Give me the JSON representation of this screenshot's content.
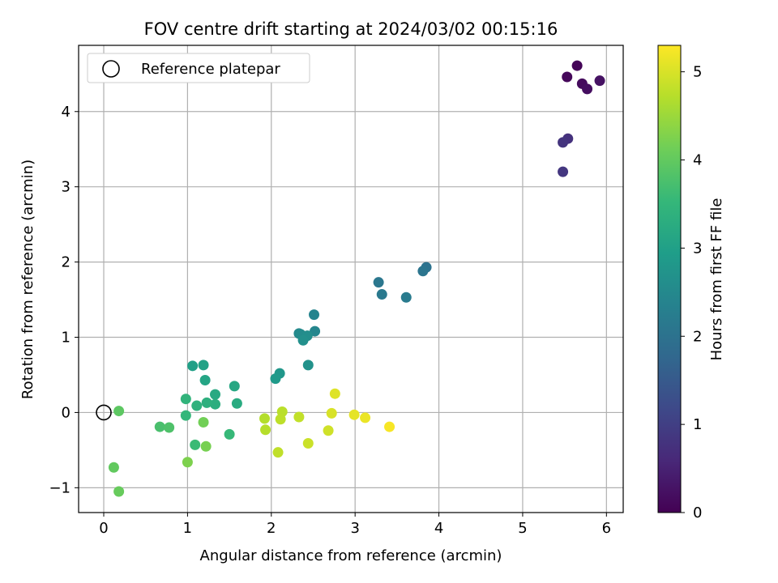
{
  "chart_data": {
    "type": "scatter",
    "title": "FOV centre drift starting at 2024/03/02 00:15:16",
    "xlabel": "Angular distance from reference (arcmin)",
    "ylabel": "Rotation from reference (arcmin)",
    "xlim": [
      -0.3,
      6.2
    ],
    "ylim": [
      -1.33,
      4.88
    ],
    "xticks": [
      0,
      1,
      2,
      3,
      4,
      5,
      6
    ],
    "yticks": [
      -1,
      0,
      1,
      2,
      3,
      4
    ],
    "grid": true,
    "legend": {
      "placement": "upper-left",
      "entries": [
        "Reference platepar"
      ]
    },
    "reference_point": {
      "x": 0,
      "y": 0
    },
    "colorbar": {
      "label": "Hours from first FF file",
      "range": [
        0,
        5.3
      ],
      "ticks": [
        0,
        1,
        2,
        3,
        4,
        5
      ],
      "colormap": "viridis"
    },
    "colormap_stops": [
      "#440154",
      "#482878",
      "#3e4989",
      "#31688e",
      "#26828e",
      "#1f9e89",
      "#35b779",
      "#6ece58",
      "#b5de2b",
      "#fde725"
    ],
    "points": [
      {
        "x": 5.65,
        "y": 4.61,
        "t": 0.05
      },
      {
        "x": 5.53,
        "y": 4.46,
        "t": 0.1
      },
      {
        "x": 5.71,
        "y": 4.37,
        "t": 0.15
      },
      {
        "x": 5.77,
        "y": 4.3,
        "t": 0.2
      },
      {
        "x": 5.92,
        "y": 4.41,
        "t": 0.25
      },
      {
        "x": 5.54,
        "y": 3.64,
        "t": 0.75
      },
      {
        "x": 5.48,
        "y": 3.59,
        "t": 0.8
      },
      {
        "x": 5.48,
        "y": 3.2,
        "t": 0.85
      },
      {
        "x": 3.85,
        "y": 1.93,
        "t": 2.0
      },
      {
        "x": 3.81,
        "y": 1.88,
        "t": 2.05
      },
      {
        "x": 3.28,
        "y": 1.73,
        "t": 2.1
      },
      {
        "x": 3.32,
        "y": 1.57,
        "t": 2.15
      },
      {
        "x": 3.61,
        "y": 1.53,
        "t": 2.2
      },
      {
        "x": 2.51,
        "y": 1.3,
        "t": 2.4
      },
      {
        "x": 2.52,
        "y": 1.08,
        "t": 2.45
      },
      {
        "x": 2.33,
        "y": 1.05,
        "t": 2.5
      },
      {
        "x": 2.35,
        "y": 1.04,
        "t": 2.55
      },
      {
        "x": 2.43,
        "y": 1.02,
        "t": 2.6
      },
      {
        "x": 2.38,
        "y": 0.96,
        "t": 2.65
      },
      {
        "x": 2.44,
        "y": 0.63,
        "t": 2.7
      },
      {
        "x": 2.1,
        "y": 0.52,
        "t": 2.8
      },
      {
        "x": 2.05,
        "y": 0.45,
        "t": 2.85
      },
      {
        "x": 1.06,
        "y": 0.62,
        "t": 3.0
      },
      {
        "x": 1.19,
        "y": 0.63,
        "t": 3.05
      },
      {
        "x": 1.21,
        "y": 0.43,
        "t": 3.1
      },
      {
        "x": 1.56,
        "y": 0.35,
        "t": 3.15
      },
      {
        "x": 1.33,
        "y": 0.24,
        "t": 3.2
      },
      {
        "x": 1.59,
        "y": 0.12,
        "t": 3.25
      },
      {
        "x": 1.33,
        "y": 0.11,
        "t": 3.3
      },
      {
        "x": 1.23,
        "y": 0.13,
        "t": 3.35
      },
      {
        "x": 1.11,
        "y": 0.09,
        "t": 3.4
      },
      {
        "x": 0.98,
        "y": 0.18,
        "t": 3.45
      },
      {
        "x": 0.98,
        "y": -0.04,
        "t": 3.5
      },
      {
        "x": 1.5,
        "y": -0.29,
        "t": 3.55
      },
      {
        "x": 1.09,
        "y": -0.43,
        "t": 3.6
      },
      {
        "x": 0.67,
        "y": -0.19,
        "t": 3.75
      },
      {
        "x": 0.78,
        "y": -0.2,
        "t": 3.8
      },
      {
        "x": 0.18,
        "y": 0.02,
        "t": 3.95
      },
      {
        "x": 0.12,
        "y": -0.73,
        "t": 4.0
      },
      {
        "x": 0.18,
        "y": -1.05,
        "t": 4.05
      },
      {
        "x": 1.19,
        "y": -0.13,
        "t": 4.15
      },
      {
        "x": 1.22,
        "y": -0.45,
        "t": 4.2
      },
      {
        "x": 1.0,
        "y": -0.66,
        "t": 4.25
      },
      {
        "x": 1.92,
        "y": -0.08,
        "t": 4.7
      },
      {
        "x": 1.93,
        "y": -0.23,
        "t": 4.72
      },
      {
        "x": 2.13,
        "y": 0.01,
        "t": 4.75
      },
      {
        "x": 2.11,
        "y": -0.09,
        "t": 4.78
      },
      {
        "x": 2.08,
        "y": -0.53,
        "t": 4.8
      },
      {
        "x": 2.33,
        "y": -0.06,
        "t": 4.82
      },
      {
        "x": 2.44,
        "y": -0.41,
        "t": 4.88
      },
      {
        "x": 2.68,
        "y": -0.24,
        "t": 4.92
      },
      {
        "x": 2.72,
        "y": -0.01,
        "t": 5.0
      },
      {
        "x": 2.76,
        "y": 0.25,
        "t": 5.05
      },
      {
        "x": 2.99,
        "y": -0.03,
        "t": 5.1
      },
      {
        "x": 3.12,
        "y": -0.07,
        "t": 5.15
      },
      {
        "x": 3.41,
        "y": -0.19,
        "t": 5.25
      }
    ]
  }
}
